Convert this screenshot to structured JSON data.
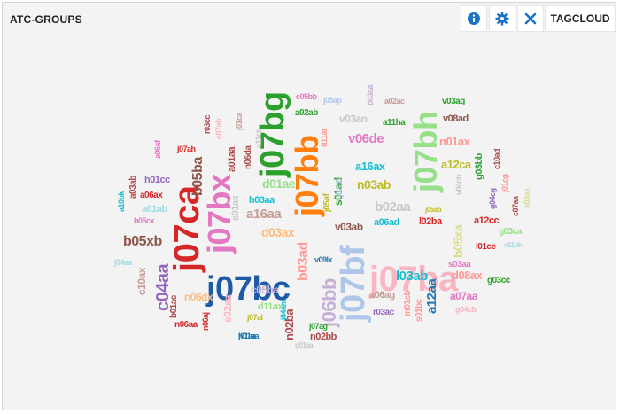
{
  "header": {
    "title": "ATC-GROUPS",
    "view_label": "TAGCLOUD",
    "icons": [
      "info-icon",
      "gear-icon",
      "close-icon"
    ],
    "accent_color": "#1a73c8"
  },
  "tags": [
    {
      "text": "j07ba",
      "color": "#f7b6c2"
    },
    {
      "text": "j07bc",
      "color": "#1f5aa6"
    },
    {
      "text": "j07ca",
      "color": "#d62728"
    },
    {
      "text": "j07bx",
      "color": "#e377c2"
    },
    {
      "text": "j07bb",
      "color": "#ff7f0e"
    },
    {
      "text": "j07bg",
      "color": "#2ca02c"
    },
    {
      "text": "j07bh",
      "color": "#98df8a"
    },
    {
      "text": "j07bf",
      "color": "#aec7e8"
    },
    {
      "text": "j06bb",
      "color": "#c5b0d5"
    },
    {
      "text": "c04aa",
      "color": "#9467bd"
    },
    {
      "text": "b05ba",
      "color": "#8c564b"
    },
    {
      "text": "b05xb",
      "color": "#8c564b"
    },
    {
      "text": "a16aa",
      "color": "#c49c94"
    },
    {
      "text": "d01ae",
      "color": "#98df8a"
    },
    {
      "text": "n03ab",
      "color": "#bcbd22"
    },
    {
      "text": "v06de",
      "color": "#e377c2"
    },
    {
      "text": "v03an",
      "color": "#c7c7c7"
    },
    {
      "text": "a16ax",
      "color": "#17becf"
    },
    {
      "text": "b02aa",
      "color": "#c7c7c7"
    },
    {
      "text": "v03ab",
      "color": "#8c564b"
    },
    {
      "text": "l03ab",
      "color": "#17becf"
    },
    {
      "text": "a12aa",
      "color": "#1f77b4"
    },
    {
      "text": "b05xa",
      "color": "#dbdb8d"
    },
    {
      "text": "d03ax",
      "color": "#ffbb78"
    },
    {
      "text": "b03ad",
      "color": "#ff9896"
    },
    {
      "text": "c05ba",
      "color": "#c5b0d5"
    },
    {
      "text": "n06dx",
      "color": "#ffbb78"
    },
    {
      "text": "s02aa",
      "color": "#f7b6c2"
    },
    {
      "text": "n02ba",
      "color": "#ad494a"
    },
    {
      "text": "d11ax",
      "color": "#98df8a"
    },
    {
      "text": "n01ax",
      "color": "#ff9896"
    },
    {
      "text": "a12ca",
      "color": "#bcbd22"
    },
    {
      "text": "a07aa",
      "color": "#e377c2"
    },
    {
      "text": "d08ax",
      "color": "#ff9896"
    },
    {
      "text": "c10ax",
      "color": "#c49c94"
    },
    {
      "text": "h01cc",
      "color": "#9467bd"
    },
    {
      "text": "a01ab",
      "color": "#9edae5"
    },
    {
      "text": "h03aa",
      "color": "#17becf"
    },
    {
      "text": "s01ax",
      "color": "#c7c7c7"
    },
    {
      "text": "s01ad",
      "color": "#2ca02c"
    },
    {
      "text": "v08ad",
      "color": "#8c564b"
    },
    {
      "text": "v03ag",
      "color": "#2ca02c"
    },
    {
      "text": "a02ab",
      "color": "#2ca02c"
    },
    {
      "text": "a11ha",
      "color": "#2ca02c"
    },
    {
      "text": "a01aa",
      "color": "#ad494a"
    },
    {
      "text": "n06da",
      "color": "#ad494a"
    },
    {
      "text": "a03ab",
      "color": "#ad494a"
    },
    {
      "text": "a06ax",
      "color": "#d62728"
    },
    {
      "text": "b05cx",
      "color": "#e377c2"
    },
    {
      "text": "b01ac",
      "color": "#ad494a"
    },
    {
      "text": "n06aa",
      "color": "#d62728"
    },
    {
      "text": "j01aa",
      "color": "#1f77b4"
    },
    {
      "text": "n02bb",
      "color": "#ad494a"
    },
    {
      "text": "a06ad",
      "color": "#17becf"
    },
    {
      "text": "l02ba",
      "color": "#d62728"
    },
    {
      "text": "a06ag",
      "color": "#c49c94"
    },
    {
      "text": "s01bc",
      "color": "#ff9896"
    },
    {
      "text": "s03aa",
      "color": "#e377c2"
    },
    {
      "text": "g03cc",
      "color": "#2ca02c"
    },
    {
      "text": "g04cb",
      "color": "#f7b6c2"
    },
    {
      "text": "g03ca",
      "color": "#98df8a"
    },
    {
      "text": "a12cc",
      "color": "#d62728"
    },
    {
      "text": "l01ce",
      "color": "#d62728"
    },
    {
      "text": "r03ac",
      "color": "#9467bd"
    },
    {
      "text": "h01aa",
      "color": "#1f77b4"
    },
    {
      "text": "g01aa",
      "color": "#c7c7c7"
    },
    {
      "text": "j07ag",
      "color": "#2ca02c"
    },
    {
      "text": "j07al",
      "color": "#bcbd22"
    },
    {
      "text": "j04aa",
      "color": "#9edae5"
    },
    {
      "text": "c05bb",
      "color": "#e377c2"
    },
    {
      "text": "j05ap",
      "color": "#aec7e8"
    },
    {
      "text": "a02ac",
      "color": "#c49c94"
    },
    {
      "text": "g03bb",
      "color": "#2ca02c"
    },
    {
      "text": "c10ad",
      "color": "#ad494a"
    },
    {
      "text": "a11cb",
      "color": "#c7c7c7"
    },
    {
      "text": "j07ah",
      "color": "#d62728"
    },
    {
      "text": "j05ab",
      "color": "#bcbd22"
    },
    {
      "text": "j05af",
      "color": "#bcbd22"
    },
    {
      "text": "j02ab",
      "color": "#aec7e8"
    },
    {
      "text": "v09lx",
      "color": "#1f77b4"
    },
    {
      "text": "n06aj",
      "color": "#d62728"
    },
    {
      "text": "m01cb",
      "color": "#ff9896"
    },
    {
      "text": "r03cc",
      "color": "#ad494a"
    },
    {
      "text": "c07ab",
      "color": "#f7b6c2"
    },
    {
      "text": "g04cg",
      "color": "#9467bd"
    },
    {
      "text": "c07aa",
      "color": "#ad494a"
    },
    {
      "text": "v04cb",
      "color": "#c7c7c7"
    },
    {
      "text": "a11ph",
      "color": "#9edae5"
    },
    {
      "text": "b03aa",
      "color": "#c5b0d5"
    },
    {
      "text": "j01ca",
      "color": "#c49c94"
    },
    {
      "text": "j04am",
      "color": "#17becf"
    },
    {
      "text": "s03ax",
      "color": "#dbdb8d"
    },
    {
      "text": "d11af",
      "color": "#ff9896"
    },
    {
      "text": "a10bk",
      "color": "#17becf"
    },
    {
      "text": "a06af",
      "color": "#e377c2"
    },
    {
      "text": "j01cg",
      "color": "#ff9896"
    }
  ]
}
